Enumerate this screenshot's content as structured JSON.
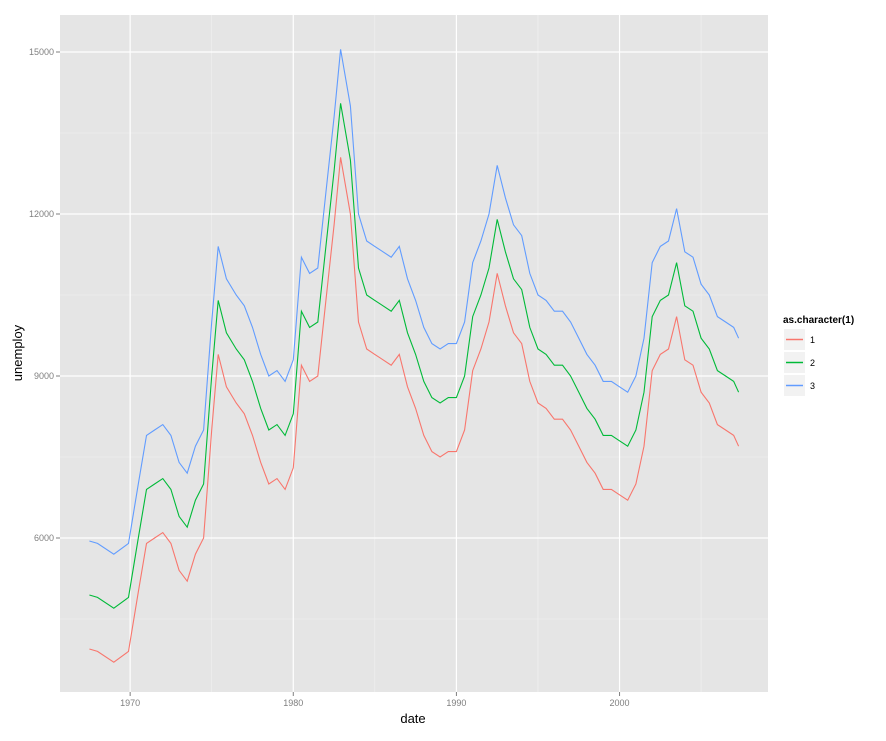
{
  "chart_data": {
    "type": "line",
    "title": "",
    "xlabel": "date",
    "ylabel": "unemploy",
    "xlim": [
      1965.7,
      2009.1
    ],
    "ylim": [
      3148,
      15685
    ],
    "xticks": [
      1970,
      1980,
      1990,
      2000
    ],
    "yticks": [
      6000,
      9000,
      12000,
      15000
    ],
    "xtick_labels": [
      "1970",
      "1980",
      "1990",
      "2000"
    ],
    "ytick_labels": [
      "6000",
      "9000",
      "12000",
      "15000"
    ],
    "grid": true,
    "legend": {
      "title": "as.character(1)",
      "placement": "right"
    },
    "x": [
      1967.5,
      1968,
      1969,
      1969.9,
      1970.5,
      1971,
      1971.5,
      1972,
      1972.5,
      1973,
      1973.5,
      1974,
      1974.5,
      1975,
      1975.4,
      1975.9,
      1976.5,
      1977,
      1977.5,
      1978,
      1978.5,
      1979,
      1979.5,
      1980,
      1980.5,
      1981,
      1981.5,
      1982,
      1982.5,
      1982.9,
      1983.5,
      1984,
      1984.5,
      1985,
      1985.5,
      1986,
      1986.5,
      1987,
      1987.5,
      1988,
      1988.5,
      1989,
      1989.5,
      1990,
      1990.5,
      1991,
      1991.5,
      1992,
      1992.5,
      1993,
      1993.5,
      1994,
      1994.5,
      1995,
      1995.5,
      1996,
      1996.5,
      1997,
      1997.5,
      1998,
      1998.5,
      1999,
      1999.5,
      2000,
      2000.5,
      2001,
      2001.5,
      2002,
      2002.5,
      2003,
      2003.5,
      2004,
      2004.5,
      2005,
      2005.5,
      2006,
      2006.5,
      2007,
      2007.3
    ],
    "series": [
      {
        "name": "1",
        "color": "#F8766D",
        "values": [
          3944,
          3900,
          3700,
          3900,
          5000,
          5900,
          6000,
          6100,
          5900,
          5400,
          5200,
          5700,
          6000,
          8000,
          9400,
          8800,
          8500,
          8300,
          7900,
          7400,
          7000,
          7100,
          6900,
          7300,
          9200,
          8900,
          9000,
          10400,
          11800,
          13050,
          12000,
          10000,
          9500,
          9400,
          9300,
          9200,
          9400,
          8800,
          8400,
          7900,
          7600,
          7500,
          7600,
          7600,
          8000,
          9100,
          9500,
          10000,
          10900,
          10300,
          9800,
          9600,
          8900,
          8500,
          8400,
          8200,
          8200,
          8000,
          7700,
          7400,
          7200,
          6900,
          6900,
          6800,
          6700,
          7000,
          7700,
          9100,
          9400,
          9500,
          10100,
          9300,
          9200,
          8700,
          8500,
          8100,
          8000,
          7900,
          7700
        ]
      },
      {
        "name": "2",
        "color": "#00BA38",
        "values": [
          4944,
          4900,
          4700,
          4900,
          6000,
          6900,
          7000,
          7100,
          6900,
          6400,
          6200,
          6700,
          7000,
          9000,
          10400,
          9800,
          9500,
          9300,
          8900,
          8400,
          8000,
          8100,
          7900,
          8300,
          10200,
          9900,
          10000,
          11400,
          12800,
          14050,
          13000,
          11000,
          10500,
          10400,
          10300,
          10200,
          10400,
          9800,
          9400,
          8900,
          8600,
          8500,
          8600,
          8600,
          9000,
          10100,
          10500,
          11000,
          11900,
          11300,
          10800,
          10600,
          9900,
          9500,
          9400,
          9200,
          9200,
          9000,
          8700,
          8400,
          8200,
          7900,
          7900,
          7800,
          7700,
          8000,
          8700,
          10100,
          10400,
          10500,
          11100,
          10300,
          10200,
          9700,
          9500,
          9100,
          9000,
          8900,
          8700
        ]
      },
      {
        "name": "3",
        "color": "#619CFF",
        "values": [
          5944,
          5900,
          5700,
          5900,
          7000,
          7900,
          8000,
          8100,
          7900,
          7400,
          7200,
          7700,
          8000,
          10000,
          11400,
          10800,
          10500,
          10300,
          9900,
          9400,
          9000,
          9100,
          8900,
          9300,
          11200,
          10900,
          11000,
          12400,
          13800,
          15050,
          14000,
          12000,
          11500,
          11400,
          11300,
          11200,
          11400,
          10800,
          10400,
          9900,
          9600,
          9500,
          9600,
          9600,
          10000,
          11100,
          11500,
          12000,
          12900,
          12300,
          11800,
          11600,
          10900,
          10500,
          10400,
          10200,
          10200,
          10000,
          9700,
          9400,
          9200,
          8900,
          8900,
          8800,
          8700,
          9000,
          9700,
          11100,
          11400,
          11500,
          12100,
          11300,
          11200,
          10700,
          10500,
          10100,
          10000,
          9900,
          9700
        ]
      }
    ]
  }
}
